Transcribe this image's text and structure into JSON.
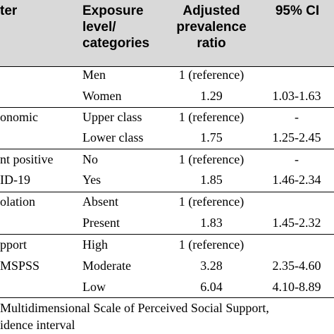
{
  "header": {
    "factor_line1": "ter",
    "exposure_line1": "Exposure",
    "exposure_line2": "level/",
    "exposure_line3": "categories",
    "ratio_line1": "Adjusted",
    "ratio_line2": "prevalence",
    "ratio_line3": "ratio",
    "ci_line1": "95% CI"
  },
  "rows": [
    {
      "factor": "",
      "level": "Men",
      "ratio": "1 (reference)",
      "ci": ""
    },
    {
      "factor": "",
      "level": "Women",
      "ratio": "1.29",
      "ci": "1.03-1.63"
    },
    {
      "factor": "onomic",
      "level": "Upper class",
      "ratio": "1 (reference)",
      "ci": "-"
    },
    {
      "factor": "",
      "level": "Lower class",
      "ratio": "1.75",
      "ci": "1.25-2.45"
    },
    {
      "factor": "nt positive",
      "level": "No",
      "ratio": "1 (reference)",
      "ci": "-"
    },
    {
      "factor": "ID-19",
      "level": "Yes",
      "ratio": "1.85",
      "ci": "1.46-2.34"
    },
    {
      "factor": "olation",
      "level": "Absent",
      "ratio": "1 (reference)",
      "ci": ""
    },
    {
      "factor": "",
      "level": "Present",
      "ratio": "1.83",
      "ci": "1.45-2.32"
    },
    {
      "factor": "pport",
      "level": "High",
      "ratio": "1 (reference)",
      "ci": ""
    },
    {
      "factor": "MSPSS",
      "level": "Moderate",
      "ratio": "3.28",
      "ci": "2.35-4.60"
    },
    {
      "factor": "",
      "level": "Low",
      "ratio": "6.04",
      "ci": "4.10-8.89"
    }
  ],
  "footnotes": {
    "line1": " Multidimensional Scale of Perceived Social Support,",
    "line2": "idence interval"
  }
}
